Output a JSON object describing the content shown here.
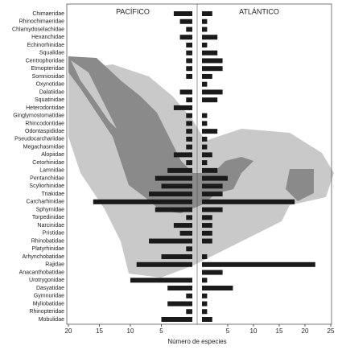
{
  "chart_data": {
    "type": "bar",
    "orientation": "horizontal",
    "categories": [
      "Chimaeridae",
      "Rhinochimaeridae",
      "Chlamydoselachidae",
      "Hexanchidae",
      "Echinorhinidae",
      "Squalidae",
      "Centrophoridae",
      "Etmopteridae",
      "Somniosidae",
      "Oxynotidae",
      "Dalatiidae",
      "Squatinidae",
      "Heterodontidae",
      "Ginglymostomatidae",
      "Rhincodontidae",
      "Odontaspididae",
      "Pseudocarchariidae",
      "Megachasmidae",
      "Alopiidae",
      "Cetorhinidae",
      "Lamnidae",
      "Pentanchidae",
      "Scyliorhinidae",
      "Triakidae",
      "Carcharhinidae",
      "Sphyrnidae",
      "Torpedinidae",
      "Narcinidae",
      "Pristidae",
      "Rhinobatidae",
      "Platyrhinidae",
      "Arhynchobatidae",
      "Rajidae",
      "Anacanthobatidae",
      "Urotrygonidae",
      "Dasyatidae",
      "Gymnuridae",
      "Myliobatidae",
      "Rhinopteridae",
      "Mobulidae"
    ],
    "series": [
      {
        "name": "PACÍFICO",
        "color": "#1a1a1a",
        "values": [
          3,
          2,
          1,
          2,
          1,
          1,
          1,
          1,
          1,
          0,
          2,
          1,
          3,
          1,
          1,
          1,
          1,
          1,
          3,
          1,
          4,
          6,
          5,
          7,
          16,
          6,
          1,
          3,
          2,
          7,
          1,
          5,
          9,
          0,
          10,
          4,
          1,
          4,
          1,
          5
        ]
      },
      {
        "name": "ATLÁNTICO",
        "color": "#1a1a1a",
        "axis": "x2",
        "values": [
          2,
          1,
          1,
          3,
          1,
          3,
          4,
          4,
          2,
          1,
          4,
          3,
          0,
          1,
          1,
          3,
          1,
          1,
          2,
          1,
          3,
          5,
          4,
          4,
          18,
          4,
          2,
          2,
          2,
          2,
          0,
          1,
          22,
          4,
          1,
          6,
          1,
          1,
          1,
          2
        ]
      }
    ],
    "xlabel": "Número de especies",
    "xlim": [
      20,
      0
    ],
    "xticks": [
      20,
      15,
      10,
      5
    ],
    "x2lim": [
      0,
      25
    ],
    "x2ticks": [
      5,
      10,
      15,
      20,
      25
    ]
  }
}
